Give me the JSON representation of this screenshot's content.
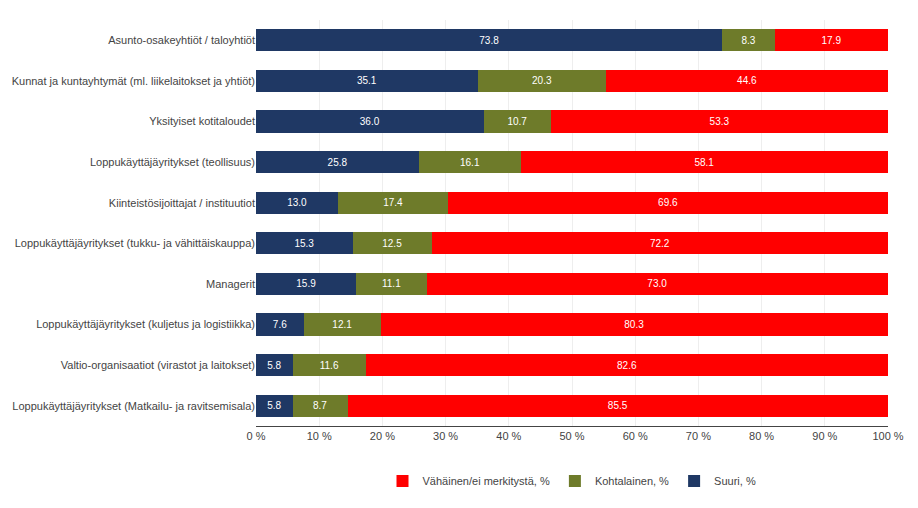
{
  "chart_data": {
    "type": "bar",
    "orientation": "horizontal",
    "stacked": true,
    "data_labels": true,
    "grid": true,
    "legend": "bottom",
    "categories": [
      "Asunto-osakeyhtiöt / taloyhtiöt",
      "Kunnat ja kuntayhtymät (ml. liikelaitokset ja yhtiöt)",
      "Yksityiset kotitaloudet",
      "Loppukäyttäjäyritykset (teollisuus)",
      "Kiinteistösijoittajat / instituutiot",
      "Loppukäyttäjäyritykset (tukku- ja vähittäiskauppa)",
      "Managerit",
      "Loppukäyttäjäyritykset (kuljetus ja logistiikka)",
      "Valtio-organisaatiot (virastot ja laitokset)",
      "Loppukäyttäjäyritykset (Matkailu- ja ravitsemisala)"
    ],
    "series": [
      {
        "name": "Suuri, %",
        "color": "#1F3864",
        "values": [
          73.8,
          35.1,
          36.0,
          25.8,
          13.0,
          15.3,
          15.9,
          7.6,
          5.8,
          5.8
        ],
        "value_labels": [
          "73.8",
          "35.1",
          "36.0",
          "25.8",
          "13.0",
          "15.3",
          "15.9",
          "7.6",
          "5.8",
          "5.8"
        ]
      },
      {
        "name": "Kohtalainen, %",
        "color": "#6E7B2A",
        "values": [
          8.3,
          20.3,
          10.7,
          16.1,
          17.4,
          12.5,
          11.1,
          12.1,
          11.6,
          8.7
        ],
        "value_labels": [
          "8.3",
          "20.3",
          "10.7",
          "16.1",
          "17.4",
          "12.5",
          "11.1",
          "12.1",
          "11.6",
          "8.7"
        ]
      },
      {
        "name": "Vähäinen/ei merkitystä, %",
        "color": "#FF0000",
        "values": [
          17.9,
          44.6,
          53.3,
          58.1,
          69.6,
          72.2,
          73.0,
          80.3,
          82.6,
          85.5
        ],
        "value_labels": [
          "17.9",
          "44.6",
          "53.3",
          "58.1",
          "69.6",
          "72.2",
          "73.0",
          "80.3",
          "82.6",
          "85.5"
        ]
      }
    ],
    "xlim": [
      0,
      100
    ],
    "xticks": [
      {
        "value": 0,
        "label": "0 %"
      },
      {
        "value": 10,
        "label": "10 %"
      },
      {
        "value": 20,
        "label": "20 %"
      },
      {
        "value": 30,
        "label": "30 %"
      },
      {
        "value": 40,
        "label": "40 %"
      },
      {
        "value": 50,
        "label": "50 %"
      },
      {
        "value": 60,
        "label": "60 %"
      },
      {
        "value": 70,
        "label": "70 %"
      },
      {
        "value": 80,
        "label": "80 %"
      },
      {
        "value": 90,
        "label": "90 %"
      },
      {
        "value": 100,
        "label": "100 %"
      }
    ]
  }
}
